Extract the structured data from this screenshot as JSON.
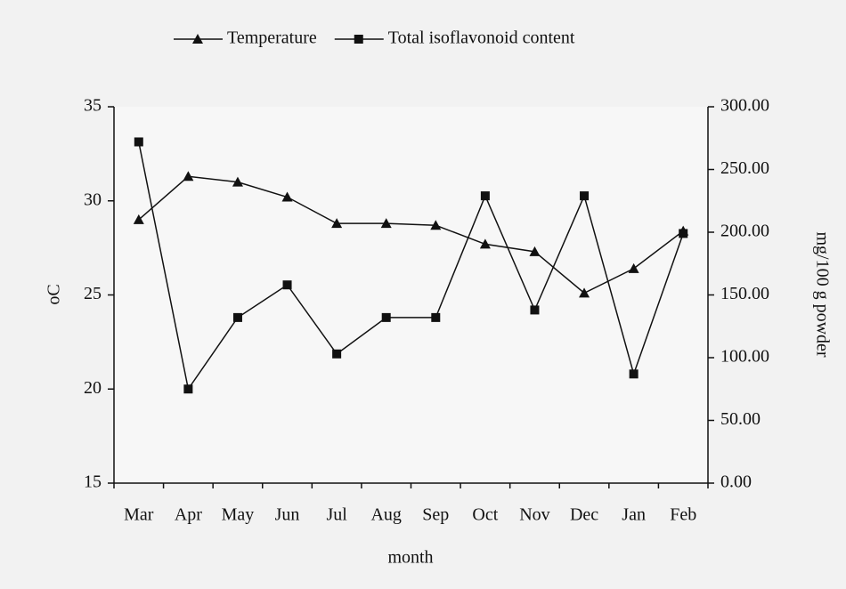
{
  "chart_data": {
    "type": "line",
    "xlabel": "month",
    "ylabel": "oC",
    "y2label": "mg/100 g powder",
    "categories": [
      "Mar",
      "Apr",
      "May",
      "Jun",
      "Jul",
      "Aug",
      "Sep",
      "Oct",
      "Nov",
      "Dec",
      "Jan",
      "Feb"
    ],
    "series": [
      {
        "name": "Temperature",
        "color": "#111111",
        "marker": "triangle",
        "values": [
          29.0,
          31.3,
          31.0,
          30.2,
          28.8,
          28.8,
          28.7,
          27.7,
          27.3,
          25.1,
          26.4,
          28.4
        ]
      },
      {
        "name": "Total isoflavonoid content",
        "color": "#111111",
        "marker": "square",
        "axis": "y2",
        "values": [
          272,
          75,
          132,
          158,
          103,
          132,
          132,
          229,
          138,
          229,
          87,
          199
        ]
      }
    ],
    "ylim": [
      15,
      35
    ],
    "yticks": [
      15,
      20,
      25,
      30,
      35
    ],
    "y2lim": [
      0,
      300
    ],
    "y2ticks": [
      {
        "value": 0,
        "label": "0.00"
      },
      {
        "value": 50,
        "label": "50.00"
      },
      {
        "value": 100,
        "label": "100.00"
      },
      {
        "value": 150,
        "label": "150.00"
      },
      {
        "value": 200,
        "label": "200.00"
      },
      {
        "value": 250,
        "label": "250.00"
      },
      {
        "value": 300,
        "label": "300.00"
      }
    ],
    "legend": "top"
  }
}
